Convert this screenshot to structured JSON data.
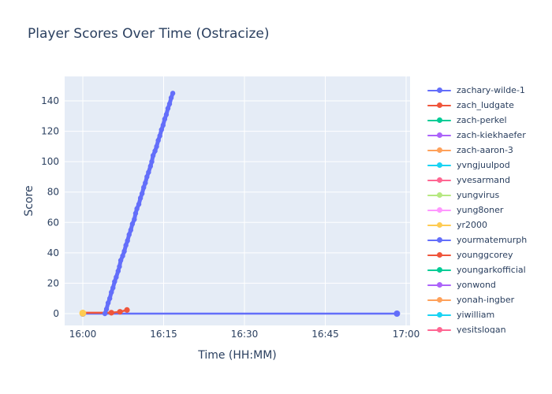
{
  "chart_data": {
    "type": "line",
    "title": "Player Scores Over Time (Ostracize)",
    "xlabel": "Time (HH:MM)",
    "ylabel": "Score",
    "x_tick_labels": [
      "16:00",
      "16:15",
      "16:30",
      "16:45",
      "17:00"
    ],
    "x_tick_minutes": [
      0,
      15,
      30,
      45,
      60
    ],
    "y_ticks": [
      0,
      20,
      40,
      60,
      80,
      100,
      120,
      140
    ],
    "x_axis_unit": "minutes after 16:00",
    "x_range_minutes": [
      -3.4,
      60.7
    ],
    "y_range": [
      -8,
      156
    ],
    "grid": true,
    "legend_position": "right",
    "plot_bg_color": "#E5ECF6",
    "text_color": "#2a3f5f",
    "series": [
      {
        "name": "yourmatemurph",
        "color": "#636EFA",
        "line_width": 2.5,
        "marker_size": 4,
        "points": [
          [
            0,
            0
          ],
          [
            58.3,
            0
          ]
        ]
      },
      {
        "name": "younggcorey",
        "color": "#EF553B",
        "line_width": 2.5,
        "marker_size": 3.6,
        "points": [
          [
            0,
            0.6
          ],
          [
            5.3,
            0.6
          ],
          [
            6.9,
            1.2
          ],
          [
            8.2,
            2.4
          ]
        ]
      },
      {
        "name": "zachary-wilde-1",
        "color": "#636EFA",
        "line_width": 5,
        "marker_size": 3.2,
        "points": [
          [
            4.1,
            0
          ],
          [
            4.4,
            3
          ],
          [
            4.7,
            7
          ],
          [
            5.0,
            10
          ],
          [
            5.3,
            14
          ],
          [
            5.6,
            17
          ],
          [
            5.9,
            21
          ],
          [
            6.2,
            24
          ],
          [
            6.56,
            28
          ],
          [
            6.8,
            31
          ],
          [
            7.04,
            35
          ],
          [
            7.4,
            38
          ],
          [
            7.7,
            41
          ],
          [
            8.0,
            45
          ],
          [
            8.3,
            48
          ],
          [
            8.6,
            52
          ],
          [
            8.9,
            55
          ],
          [
            9.2,
            59
          ],
          [
            9.56,
            62
          ],
          [
            9.8,
            66
          ],
          [
            10.04,
            69
          ],
          [
            10.4,
            72
          ],
          [
            10.7,
            76
          ],
          [
            11.0,
            79
          ],
          [
            11.3,
            83
          ],
          [
            11.6,
            86
          ],
          [
            11.9,
            90
          ],
          [
            12.2,
            93
          ],
          [
            12.56,
            97
          ],
          [
            12.8,
            100
          ],
          [
            13.04,
            104
          ],
          [
            13.4,
            107
          ],
          [
            13.7,
            110
          ],
          [
            14.0,
            114
          ],
          [
            14.3,
            117
          ],
          [
            14.6,
            121
          ],
          [
            14.9,
            124
          ],
          [
            15.2,
            128
          ],
          [
            15.5,
            131
          ],
          [
            15.8,
            135
          ],
          [
            16.1,
            138
          ],
          [
            16.4,
            142
          ],
          [
            16.7,
            145
          ]
        ]
      },
      {
        "name": "yr2000",
        "color": "#FECB52",
        "line_width": 2.5,
        "marker_size": 4.4,
        "points": [
          [
            0,
            0.3
          ]
        ]
      }
    ],
    "legend": [
      {
        "label": "zachary-wilde-1",
        "color": "#636EFA"
      },
      {
        "label": "zach_ludgate",
        "color": "#EF553B"
      },
      {
        "label": "zach-perkel",
        "color": "#00CC96"
      },
      {
        "label": "zach-kiekhaefer",
        "color": "#AB63FA"
      },
      {
        "label": "zach-aaron-3",
        "color": "#FFA15A"
      },
      {
        "label": "yvngjuulpod",
        "color": "#19D3F3"
      },
      {
        "label": "yvesarmand",
        "color": "#FF6692"
      },
      {
        "label": "yungvirus",
        "color": "#B6E880"
      },
      {
        "label": "yung8oner",
        "color": "#FF97FF"
      },
      {
        "label": "yr2000",
        "color": "#FECB52"
      },
      {
        "label": "yourmatemurph",
        "color": "#636EFA"
      },
      {
        "label": "younggcorey",
        "color": "#EF553B"
      },
      {
        "label": "youngarkofficial",
        "color": "#00CC96"
      },
      {
        "label": "yonwond",
        "color": "#AB63FA"
      },
      {
        "label": "yonah-ingber",
        "color": "#FFA15A"
      },
      {
        "label": "yiwilliam",
        "color": "#19D3F3"
      },
      {
        "label": "yesitslogan",
        "color": "#FF6692"
      }
    ]
  }
}
